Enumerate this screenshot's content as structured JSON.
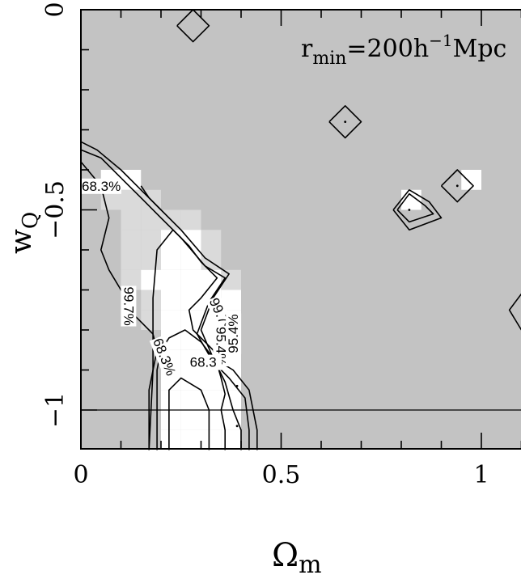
{
  "chart_data": {
    "type": "heatmap",
    "title": "",
    "annotation": {
      "base": "r",
      "sub": "min",
      "mid": "=200h",
      "sup": "−1",
      "tail": "Mpc"
    },
    "xlabel": {
      "base": "Ω",
      "sub": "m"
    },
    "ylabel": {
      "base": "w",
      "sub": "Q"
    },
    "xlim": [
      0,
      1.1
    ],
    "ylim": [
      -1.1,
      0
    ],
    "x_ticks": [
      {
        "value": 0,
        "label": "0"
      },
      {
        "value": 0.5,
        "label": "0.5"
      },
      {
        "value": 1,
        "label": "1"
      }
    ],
    "y_ticks": [
      {
        "value": 0,
        "label": "0"
      },
      {
        "value": -0.5,
        "label": "−0.5"
      },
      {
        "value": -1,
        "label": "−1"
      }
    ],
    "reference_line_y": -1,
    "colors": {
      "background": "#c3c3c3",
      "light": "#dadada",
      "white": "#ffffff",
      "line": "#000000"
    },
    "grid_cell": {
      "dx": 0.05,
      "dy": 0.05
    },
    "cells_white": [
      [
        0.05,
        -0.45
      ],
      [
        0.1,
        -0.45
      ],
      [
        0.15,
        -0.7
      ],
      [
        0.2,
        -0.6
      ],
      [
        0.25,
        -0.6
      ],
      [
        0.2,
        -0.65
      ],
      [
        0.25,
        -0.65
      ],
      [
        0.2,
        -0.7
      ],
      [
        0.25,
        -0.7
      ],
      [
        0.3,
        -0.7
      ],
      [
        0.2,
        -0.75
      ],
      [
        0.25,
        -0.75
      ],
      [
        0.3,
        -0.75
      ],
      [
        0.35,
        -0.75
      ],
      [
        0.2,
        -0.8
      ],
      [
        0.25,
        -0.8
      ],
      [
        0.3,
        -0.8
      ],
      [
        0.35,
        -0.8
      ],
      [
        0.2,
        -0.85
      ],
      [
        0.25,
        -0.85
      ],
      [
        0.3,
        -0.85
      ],
      [
        0.35,
        -0.85
      ],
      [
        0.2,
        -0.9
      ],
      [
        0.25,
        -0.9
      ],
      [
        0.3,
        -0.9
      ],
      [
        0.35,
        -0.9
      ],
      [
        0.2,
        -0.95
      ],
      [
        0.25,
        -0.95
      ],
      [
        0.3,
        -0.95
      ],
      [
        0.35,
        -0.95
      ],
      [
        0.2,
        -1.0
      ],
      [
        0.25,
        -1.0
      ],
      [
        0.3,
        -1.0
      ],
      [
        0.35,
        -1.0
      ],
      [
        0.2,
        -1.05
      ],
      [
        0.25,
        -1.05
      ],
      [
        0.3,
        -1.05
      ],
      [
        0.35,
        -1.05
      ],
      [
        0.2,
        -1.1
      ],
      [
        0.25,
        -1.1
      ],
      [
        0.3,
        -1.1
      ],
      [
        0.35,
        -1.1
      ],
      [
        0.8,
        -0.5
      ],
      [
        0.95,
        -0.45
      ]
    ],
    "cells_light": [
      [
        0.05,
        -0.5
      ],
      [
        0.1,
        -0.5
      ],
      [
        0.15,
        -0.5
      ],
      [
        0.1,
        -0.55
      ],
      [
        0.15,
        -0.55
      ],
      [
        0.1,
        -0.6
      ],
      [
        0.15,
        -0.6
      ],
      [
        0.1,
        -0.65
      ],
      [
        0.15,
        -0.65
      ],
      [
        0.1,
        -0.7
      ],
      [
        0.15,
        -0.75
      ],
      [
        0.15,
        -0.8
      ],
      [
        0.2,
        -0.55
      ],
      [
        0.25,
        -0.55
      ],
      [
        0.3,
        -0.6
      ],
      [
        0.3,
        -0.65
      ],
      [
        0.35,
        -0.7
      ],
      [
        0.2,
        -0.8
      ],
      [
        0.3,
        -0.85
      ],
      [
        0.35,
        -0.9
      ],
      [
        0.3,
        -0.95
      ],
      [
        0.35,
        -1.0
      ],
      [
        0.25,
        -1.05
      ],
      [
        0.35,
        -1.05
      ],
      [
        0.3,
        -1.1
      ]
    ],
    "contours": [
      {
        "name": "99.7% (outer)",
        "points": [
          [
            0.0,
            -0.33
          ],
          [
            0.04,
            -0.35
          ],
          [
            0.1,
            -0.4
          ],
          [
            0.15,
            -0.45
          ],
          [
            0.2,
            -0.5
          ],
          [
            0.25,
            -0.55
          ],
          [
            0.31,
            -0.62
          ],
          [
            0.37,
            -0.66
          ],
          [
            0.33,
            -0.72
          ],
          [
            0.3,
            -0.8
          ],
          [
            0.33,
            -0.87
          ],
          [
            0.38,
            -0.9
          ],
          [
            0.42,
            -0.95
          ],
          [
            0.44,
            -1.05
          ],
          [
            0.44,
            -1.1
          ]
        ]
      },
      {
        "name": "99.7% (inner)",
        "points": [
          [
            0.0,
            -0.35
          ],
          [
            0.05,
            -0.37
          ],
          [
            0.1,
            -0.42
          ],
          [
            0.15,
            -0.47
          ],
          [
            0.2,
            -0.52
          ],
          [
            0.25,
            -0.57
          ],
          [
            0.31,
            -0.64
          ],
          [
            0.36,
            -0.67
          ],
          [
            0.32,
            -0.73
          ],
          [
            0.29,
            -0.81
          ],
          [
            0.33,
            -0.88
          ],
          [
            0.37,
            -0.92
          ],
          [
            0.41,
            -0.97
          ],
          [
            0.42,
            -1.05
          ],
          [
            0.42,
            -1.1
          ]
        ]
      },
      {
        "name": "95.4%",
        "points": [
          [
            0.0,
            -0.38
          ],
          [
            0.05,
            -0.44
          ],
          [
            0.07,
            -0.52
          ],
          [
            0.05,
            -0.6
          ],
          [
            0.07,
            -0.65
          ],
          [
            0.1,
            -0.7
          ],
          [
            0.13,
            -0.76
          ],
          [
            0.15,
            -0.78
          ],
          [
            0.18,
            -0.81
          ],
          [
            0.19,
            -0.85
          ],
          [
            0.17,
            -0.95
          ],
          [
            0.17,
            -1.1
          ]
        ]
      },
      {
        "name": "95.4% (right)",
        "points": [
          [
            0.19,
            -1.1
          ],
          [
            0.19,
            -0.9
          ],
          [
            0.2,
            -0.85
          ],
          [
            0.22,
            -0.82
          ],
          [
            0.26,
            -0.8
          ],
          [
            0.3,
            -0.83
          ],
          [
            0.33,
            -0.87
          ],
          [
            0.36,
            -0.93
          ],
          [
            0.38,
            -1.0
          ],
          [
            0.4,
            -1.05
          ],
          [
            0.4,
            -1.1
          ]
        ]
      },
      {
        "name": "68.3%",
        "points": [
          [
            0.17,
            -1.1
          ],
          [
            0.18,
            -0.9
          ],
          [
            0.18,
            -0.72
          ],
          [
            0.19,
            -0.6
          ],
          [
            0.23,
            -0.55
          ],
          [
            0.27,
            -0.59
          ],
          [
            0.3,
            -0.63
          ],
          [
            0.34,
            -0.67
          ],
          [
            0.3,
            -0.72
          ],
          [
            0.27,
            -0.75
          ],
          [
            0.28,
            -0.8
          ],
          [
            0.33,
            -0.85
          ],
          [
            0.35,
            -0.92
          ],
          [
            0.36,
            -0.96
          ],
          [
            0.35,
            -1.0
          ],
          [
            0.36,
            -1.05
          ],
          [
            0.36,
            -1.1
          ]
        ]
      },
      {
        "name": "68.3% (inner)",
        "points": [
          [
            0.22,
            -1.1
          ],
          [
            0.22,
            -0.95
          ],
          [
            0.25,
            -0.92
          ],
          [
            0.3,
            -0.95
          ],
          [
            0.32,
            -1.0
          ],
          [
            0.32,
            -1.05
          ],
          [
            0.32,
            -1.1
          ]
        ]
      },
      {
        "name": "68.3% (top-left)",
        "points": [
          [
            0.15,
            -0.44
          ],
          [
            0.17,
            -0.47
          ],
          [
            0.2,
            -0.5
          ]
        ]
      },
      {
        "name": "diamond-1",
        "points": [
          [
            0.24,
            -0.04
          ],
          [
            0.28,
            0.0
          ],
          [
            0.32,
            -0.04
          ],
          [
            0.28,
            -0.08
          ],
          [
            0.24,
            -0.04
          ]
        ]
      },
      {
        "name": "diamond-2",
        "points": [
          [
            0.62,
            -0.28
          ],
          [
            0.66,
            -0.24
          ],
          [
            0.7,
            -0.28
          ],
          [
            0.66,
            -0.32
          ],
          [
            0.62,
            -0.28
          ]
        ]
      },
      {
        "name": "blob-3 outer",
        "points": [
          [
            0.78,
            -0.5
          ],
          [
            0.82,
            -0.45
          ],
          [
            0.87,
            -0.48
          ],
          [
            0.9,
            -0.52
          ],
          [
            0.82,
            -0.55
          ],
          [
            0.78,
            -0.5
          ]
        ]
      },
      {
        "name": "blob-3 inner",
        "points": [
          [
            0.79,
            -0.5
          ],
          [
            0.82,
            -0.46
          ],
          [
            0.86,
            -0.49
          ],
          [
            0.88,
            -0.51
          ],
          [
            0.82,
            -0.53
          ],
          [
            0.79,
            -0.5
          ]
        ]
      },
      {
        "name": "diamond-4",
        "points": [
          [
            0.9,
            -0.44
          ],
          [
            0.94,
            -0.4
          ],
          [
            0.98,
            -0.44
          ],
          [
            0.94,
            -0.48
          ],
          [
            0.9,
            -0.44
          ]
        ]
      },
      {
        "name": "edge-5",
        "points": [
          [
            1.1,
            -0.71
          ],
          [
            1.07,
            -0.75
          ],
          [
            1.1,
            -0.8
          ]
        ]
      }
    ],
    "dots": [
      [
        0.66,
        -0.28
      ],
      [
        0.82,
        -0.5
      ],
      [
        0.94,
        -0.44
      ],
      [
        0.39,
        -0.94
      ],
      [
        0.39,
        -1.04
      ]
    ],
    "contour_labels": [
      {
        "text": "68.3%",
        "x": 0.0,
        "y": -0.44,
        "rotate": 0
      },
      {
        "text": "99.7%",
        "x": 0.12,
        "y": -0.69,
        "rotate": 90
      },
      {
        "text": "99.7%",
        "x": 0.33,
        "y": -0.72,
        "rotate": 65
      },
      {
        "text": "95.4%",
        "x": 0.35,
        "y": -0.79,
        "rotate": 90
      },
      {
        "text": "68.3%",
        "x": 0.19,
        "y": -0.82,
        "rotate": 68
      },
      {
        "text": "68.3",
        "x": 0.27,
        "y": -0.88,
        "rotate": 0
      },
      {
        "text": "95.4%",
        "x": 0.38,
        "y": -0.86,
        "rotate": -90
      }
    ]
  }
}
